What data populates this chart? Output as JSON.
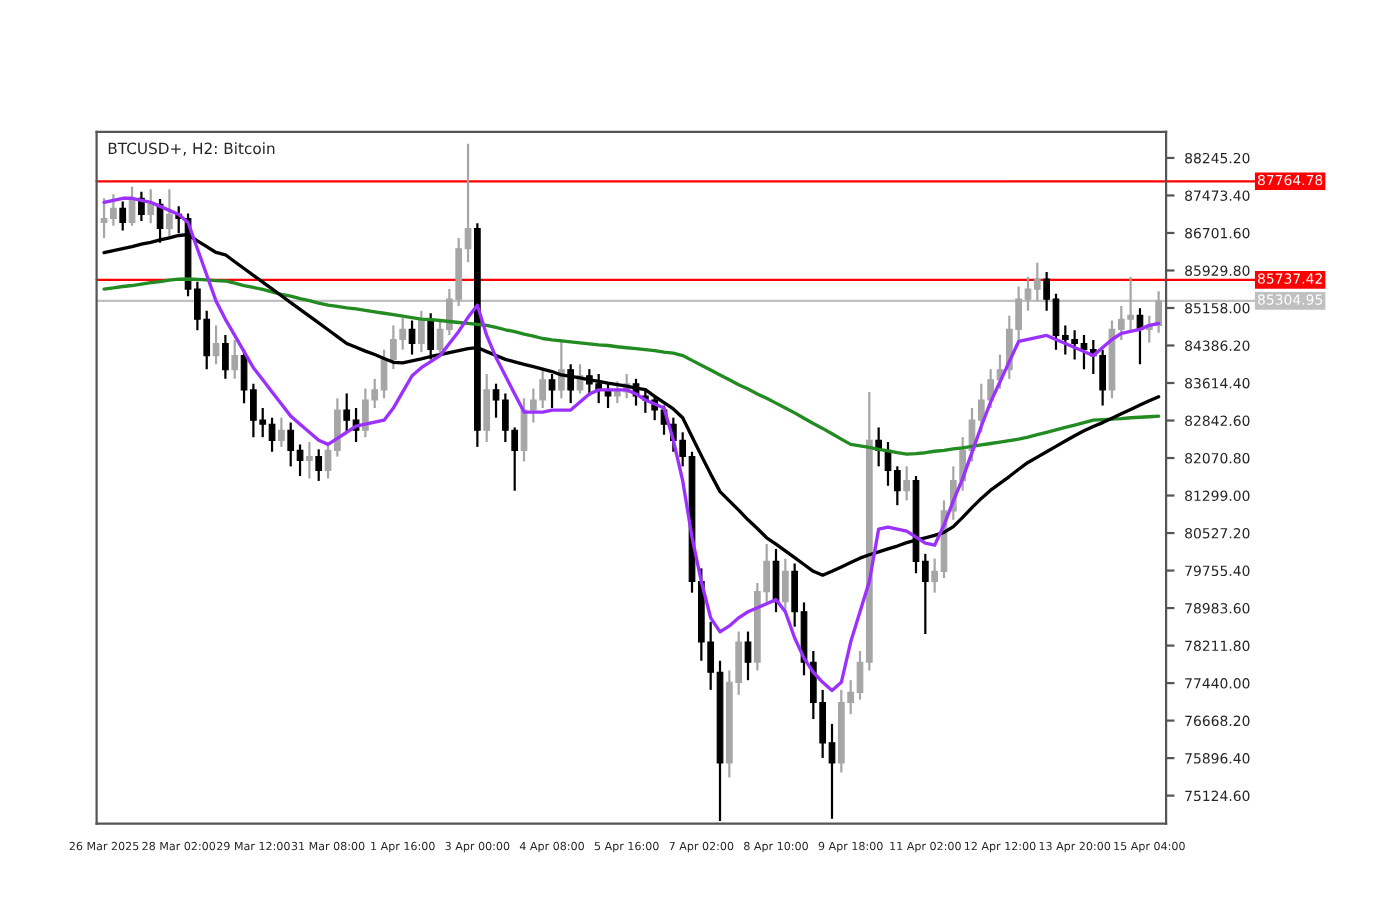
{
  "chart_data": {
    "type": "candlestick",
    "title": "BTCUSD+, H2: Bitcoin",
    "categories": [
      "26 Mar 2025",
      null,
      null,
      null,
      null,
      null,
      null,
      null,
      "28 Mar 02:00",
      null,
      null,
      null,
      null,
      null,
      null,
      null,
      "29 Mar 12:00",
      null,
      null,
      null,
      null,
      null,
      null,
      null,
      "31 Mar 08:00",
      null,
      null,
      null,
      null,
      null,
      null,
      null,
      "1 Apr 16:00",
      null,
      null,
      null,
      null,
      null,
      null,
      null,
      "3 Apr 00:00",
      null,
      null,
      null,
      null,
      null,
      null,
      null,
      "4 Apr 08:00",
      null,
      null,
      null,
      null,
      null,
      null,
      null,
      "5 Apr 16:00",
      null,
      null,
      null,
      null,
      null,
      null,
      null,
      "7 Apr 02:00",
      null,
      null,
      null,
      null,
      null,
      null,
      null,
      "8 Apr 10:00",
      null,
      null,
      null,
      null,
      null,
      null,
      null,
      "9 Apr 18:00",
      null,
      null,
      null,
      null,
      null,
      null,
      null,
      "11 Apr 02:00",
      null,
      null,
      null,
      null,
      null,
      null,
      null,
      "12 Apr 12:00",
      null,
      null,
      null,
      null,
      null,
      null,
      null,
      "13 Apr 20:00",
      null,
      null,
      null,
      null,
      null,
      null,
      null,
      "15 Apr 04:00",
      null
    ],
    "ylim": [
      74550,
      88780
    ],
    "yticks": [
      {
        "value": 88245.2,
        "label": "88245.20"
      },
      {
        "value": 87473.4,
        "label": "87473.40"
      },
      {
        "value": 86701.6,
        "label": "86701.60"
      },
      {
        "value": 85929.8,
        "label": "85929.80"
      },
      {
        "value": 85158.0,
        "label": "85158.00"
      },
      {
        "value": 84386.2,
        "label": "84386.20"
      },
      {
        "value": 83614.4,
        "label": "83614.40"
      },
      {
        "value": 82842.6,
        "label": "82842.60"
      },
      {
        "value": 82070.8,
        "label": "82070.80"
      },
      {
        "value": 81299.0,
        "label": "81299.00"
      },
      {
        "value": 80527.2,
        "label": "80527.20"
      },
      {
        "value": 79755.4,
        "label": "79755.40"
      },
      {
        "value": 78983.6,
        "label": "78983.60"
      },
      {
        "value": 78211.8,
        "label": "78211.80"
      },
      {
        "value": 77440.0,
        "label": "77440.00"
      },
      {
        "value": 76668.2,
        "label": "76668.20"
      },
      {
        "value": 75896.4,
        "label": "75896.40"
      },
      {
        "value": 75124.6,
        "label": "75124.60"
      }
    ],
    "ref_lines": [
      {
        "axis": "y",
        "value": 87764.78,
        "label": "87764.78",
        "color": "#ff0000"
      },
      {
        "axis": "y",
        "value": 85737.42,
        "label": "85737.42",
        "color": "#ff0000"
      },
      {
        "axis": "y",
        "value": 85304.95,
        "label": "85304.95",
        "color": "#c0c0c0"
      }
    ],
    "series": [
      {
        "ohlc": [
          [
            86917,
            87415,
            86600,
            87000
          ],
          [
            87000,
            87500,
            86850,
            87207
          ],
          [
            87207,
            87350,
            86750,
            86917
          ],
          [
            86917,
            87650,
            86850,
            87415
          ],
          [
            87415,
            87550,
            86950,
            87083
          ],
          [
            87083,
            87600,
            86900,
            87290
          ],
          [
            87290,
            87400,
            86500,
            86793
          ],
          [
            86793,
            87600,
            86600,
            87083
          ],
          [
            87083,
            87250,
            86700,
            87000
          ],
          [
            87000,
            87100,
            85400,
            85547
          ],
          [
            85547,
            85700,
            84700,
            84925
          ],
          [
            84925,
            85100,
            83900,
            84178
          ],
          [
            84178,
            84800,
            84000,
            84427
          ],
          [
            84427,
            84600,
            83700,
            83888
          ],
          [
            83888,
            84500,
            83700,
            84178
          ],
          [
            84178,
            84300,
            83200,
            83473
          ],
          [
            83473,
            83600,
            82500,
            82850
          ],
          [
            82850,
            83100,
            82500,
            82767
          ],
          [
            82767,
            82900,
            82200,
            82435
          ],
          [
            82435,
            82900,
            82300,
            82643
          ],
          [
            82643,
            82800,
            81900,
            82228
          ],
          [
            82228,
            82350,
            81700,
            82020
          ],
          [
            82020,
            82400,
            81650,
            82103
          ],
          [
            82103,
            82250,
            81600,
            81813
          ],
          [
            81813,
            82400,
            81650,
            82228
          ],
          [
            82228,
            83300,
            82100,
            83058
          ],
          [
            83058,
            83400,
            82600,
            82850
          ],
          [
            82850,
            83100,
            82400,
            82643
          ],
          [
            82643,
            83500,
            82500,
            83265
          ],
          [
            83265,
            83700,
            83100,
            83473
          ],
          [
            83473,
            84300,
            83300,
            84095
          ],
          [
            84095,
            84800,
            83900,
            84510
          ],
          [
            84510,
            84950,
            84300,
            84718
          ],
          [
            84718,
            84900,
            84200,
            84427
          ],
          [
            84427,
            85100,
            84250,
            84925
          ],
          [
            84925,
            85050,
            84100,
            84303
          ],
          [
            84303,
            84900,
            84150,
            84718
          ],
          [
            84718,
            85550,
            84600,
            85340
          ],
          [
            85340,
            86600,
            85200,
            86378
          ],
          [
            86378,
            88536,
            86100,
            86793
          ],
          [
            86793,
            86900,
            82300,
            82643
          ],
          [
            82643,
            83800,
            82400,
            83473
          ],
          [
            83473,
            83600,
            82900,
            83265
          ],
          [
            83265,
            83400,
            82400,
            82643
          ],
          [
            82643,
            82700,
            81398,
            82228
          ],
          [
            82228,
            83300,
            82000,
            83058
          ],
          [
            83058,
            83500,
            82800,
            83265
          ],
          [
            83265,
            83900,
            83100,
            83680
          ],
          [
            83680,
            83800,
            83100,
            83473
          ],
          [
            83473,
            84510,
            83300,
            83888
          ],
          [
            83888,
            84000,
            83200,
            83473
          ],
          [
            83473,
            84000,
            83400,
            83763
          ],
          [
            83763,
            83900,
            83350,
            83597
          ],
          [
            83597,
            83800,
            83200,
            83473
          ],
          [
            83473,
            83600,
            83100,
            83348
          ],
          [
            83348,
            83650,
            83200,
            83431
          ],
          [
            83431,
            83800,
            83300,
            83597
          ],
          [
            83597,
            83700,
            83150,
            83348
          ],
          [
            83348,
            83500,
            83000,
            83265
          ],
          [
            83265,
            83350,
            82850,
            83058
          ],
          [
            83058,
            83150,
            82550,
            82767
          ],
          [
            82767,
            82900,
            82200,
            82435
          ],
          [
            82435,
            82600,
            81900,
            82103
          ],
          [
            82103,
            82200,
            79300,
            79530
          ],
          [
            79530,
            79800,
            77900,
            78285
          ],
          [
            78285,
            78700,
            77300,
            77663
          ],
          [
            77663,
            77900,
            74600,
            75795
          ],
          [
            75795,
            77700,
            75500,
            77455
          ],
          [
            77455,
            78500,
            77200,
            78285
          ],
          [
            78285,
            78500,
            77500,
            77870
          ],
          [
            77870,
            79500,
            77700,
            79323
          ],
          [
            79323,
            80300,
            79100,
            79945
          ],
          [
            79945,
            80200,
            78900,
            79115
          ],
          [
            79115,
            80000,
            78900,
            79738
          ],
          [
            79738,
            79900,
            78600,
            78908
          ],
          [
            78908,
            79100,
            77600,
            77870
          ],
          [
            77870,
            78100,
            76700,
            77040
          ],
          [
            77040,
            77300,
            75900,
            76210
          ],
          [
            76210,
            76600,
            74650,
            75795
          ],
          [
            75795,
            77300,
            75600,
            77040
          ],
          [
            77040,
            77500,
            76800,
            77248
          ],
          [
            77248,
            78100,
            77100,
            77870
          ],
          [
            77870,
            83431,
            77700,
            82435
          ],
          [
            82435,
            82700,
            81900,
            82228
          ],
          [
            82228,
            82400,
            81500,
            81813
          ],
          [
            81813,
            81900,
            81100,
            81398
          ],
          [
            81398,
            81900,
            81200,
            81605
          ],
          [
            81605,
            81700,
            79700,
            79945
          ],
          [
            79945,
            80100,
            78450,
            79530
          ],
          [
            79530,
            80000,
            79300,
            79738
          ],
          [
            79738,
            81200,
            79600,
            80983
          ],
          [
            80983,
            81900,
            80800,
            81605
          ],
          [
            81605,
            82500,
            81400,
            82228
          ],
          [
            82228,
            83100,
            82000,
            82850
          ],
          [
            82850,
            83600,
            82600,
            83265
          ],
          [
            83265,
            83900,
            83100,
            83680
          ],
          [
            83680,
            84200,
            83500,
            83888
          ],
          [
            83888,
            85000,
            83700,
            84718
          ],
          [
            84718,
            85600,
            84500,
            85340
          ],
          [
            85340,
            85800,
            85100,
            85547
          ],
          [
            85547,
            86087,
            85300,
            85755
          ],
          [
            85755,
            85900,
            85100,
            85340
          ],
          [
            85340,
            85450,
            84300,
            84593
          ],
          [
            84593,
            84800,
            84200,
            84510
          ],
          [
            84510,
            84700,
            84100,
            84427
          ],
          [
            84427,
            84600,
            83900,
            84303
          ],
          [
            84303,
            84500,
            83800,
            84178
          ],
          [
            84178,
            84300,
            83150,
            83473
          ],
          [
            83473,
            84900,
            83300,
            84718
          ],
          [
            84718,
            85200,
            84500,
            84925
          ],
          [
            84925,
            85800,
            84700,
            85008
          ],
          [
            85008,
            85150,
            84000,
            84718
          ],
          [
            84718,
            85000,
            84450,
            84800
          ],
          [
            84800,
            85500,
            84650,
            85299
          ]
        ],
        "colors": [
          "#a6a6a6",
          "#a6a6a6",
          "#000000",
          "#a6a6a6",
          "#000000",
          "#a6a6a6",
          "#000000",
          "#a6a6a6",
          "#000000",
          "#000000",
          "#000000",
          "#000000",
          "#a6a6a6",
          "#000000",
          "#a6a6a6",
          "#000000",
          "#000000",
          "#000000",
          "#000000",
          "#a6a6a6",
          "#000000",
          "#000000",
          "#a6a6a6",
          "#000000",
          "#a6a6a6",
          "#a6a6a6",
          "#000000",
          "#000000",
          "#a6a6a6",
          "#a6a6a6",
          "#a6a6a6",
          "#a6a6a6",
          "#a6a6a6",
          "#000000",
          "#a6a6a6",
          "#000000",
          "#a6a6a6",
          "#a6a6a6",
          "#a6a6a6",
          "#a6a6a6",
          "#000000",
          "#a6a6a6",
          "#000000",
          "#000000",
          "#000000",
          "#a6a6a6",
          "#a6a6a6",
          "#a6a6a6",
          "#000000",
          "#a6a6a6",
          "#000000",
          "#a6a6a6",
          "#000000",
          "#000000",
          "#000000",
          "#a6a6a6",
          "#a6a6a6",
          "#000000",
          "#000000",
          "#000000",
          "#000000",
          "#000000",
          "#000000",
          "#000000",
          "#000000",
          "#000000",
          "#000000",
          "#a6a6a6",
          "#a6a6a6",
          "#000000",
          "#a6a6a6",
          "#a6a6a6",
          "#000000",
          "#a6a6a6",
          "#000000",
          "#000000",
          "#000000",
          "#000000",
          "#000000",
          "#a6a6a6",
          "#a6a6a6",
          "#a6a6a6",
          "#a6a6a6",
          "#000000",
          "#000000",
          "#000000",
          "#a6a6a6",
          "#000000",
          "#000000",
          "#a6a6a6",
          "#a6a6a6",
          "#a6a6a6",
          "#a6a6a6",
          "#a6a6a6",
          "#a6a6a6",
          "#a6a6a6",
          "#a6a6a6",
          "#a6a6a6",
          "#a6a6a6",
          "#a6a6a6",
          "#a6a6a6",
          "#000000",
          "#000000",
          "#000000",
          "#000000",
          "#000000",
          "#000000",
          "#000000",
          "#a6a6a6",
          "#a6a6a6",
          "#a6a6a6",
          "#000000",
          "#a6a6a6",
          "#a6a6a6"
        ]
      },
      {
        "type": "line",
        "color": "#228b22",
        "values": [
          85547,
          85570,
          85600,
          85620,
          85650,
          85680,
          85700,
          85730,
          85750,
          85755,
          85745,
          85735,
          85720,
          85714,
          85670,
          85620,
          85580,
          85540,
          85490,
          85440,
          85400,
          85350,
          85310,
          85260,
          85216,
          85190,
          85160,
          85140,
          85110,
          85080,
          85050,
          85020,
          84990,
          84960,
          84930,
          84920,
          84900,
          84880,
          84860,
          84840,
          84820,
          84800,
          84760,
          84710,
          84670,
          84620,
          84580,
          84530,
          84500,
          84480,
          84460,
          84440,
          84420,
          84400,
          84386,
          84360,
          84340,
          84320,
          84300,
          84280,
          84250,
          84230,
          84180,
          84080,
          83980,
          83880,
          83780,
          83680,
          83580,
          83490,
          83390,
          83300,
          83200,
          83100,
          83000,
          82890,
          82780,
          82680,
          82570,
          82460,
          82352,
          82320,
          82290,
          82250,
          82220,
          82180,
          82150,
          82160,
          82180,
          82210,
          82230,
          82260,
          82280,
          82310,
          82340,
          82370,
          82400,
          82430,
          82460,
          82500,
          82550,
          82600,
          82650,
          82700,
          82750,
          82800,
          82850,
          82860,
          82870,
          82880,
          82900,
          82910,
          82920,
          82933
        ]
      },
      {
        "type": "line",
        "color": "#000000",
        "values": [
          86295,
          86340,
          86380,
          86420,
          86470,
          86510,
          86560,
          86600,
          86650,
          86668,
          86540,
          86420,
          86300,
          86253,
          86110,
          85970,
          85830,
          85690,
          85550,
          85410,
          85270,
          85130,
          84990,
          84850,
          84710,
          84570,
          84427,
          84350,
          84270,
          84200,
          84120,
          84040,
          84030,
          84070,
          84110,
          84160,
          84200,
          84240,
          84280,
          84320,
          84344,
          84260,
          84180,
          84100,
          84050,
          84000,
          83950,
          83900,
          83850,
          83780,
          83750,
          83720,
          83680,
          83650,
          83610,
          83580,
          83550,
          83510,
          83480,
          83340,
          83210,
          83080,
          82900,
          82510,
          82120,
          81740,
          81380,
          81190,
          81000,
          80800,
          80620,
          80430,
          80300,
          80160,
          80020,
          79880,
          79740,
          79660,
          79740,
          79830,
          79920,
          80010,
          80080,
          80140,
          80200,
          80260,
          80330,
          80380,
          80430,
          80480,
          80540,
          80660,
          80850,
          81050,
          81240,
          81410,
          81550,
          81690,
          81840,
          81980,
          82090,
          82200,
          82310,
          82420,
          82530,
          82630,
          82720,
          82800,
          82890,
          82980,
          83070,
          83160,
          83250,
          83330
        ]
      },
      {
        "type": "line",
        "color": "#9b30ff",
        "values": [
          87332,
          87374,
          87415,
          87415,
          87374,
          87332,
          87249,
          87166,
          87083,
          86917,
          86378,
          85838,
          85299,
          84925,
          84593,
          84261,
          83929,
          83680,
          83431,
          83182,
          82933,
          82767,
          82601,
          82435,
          82352,
          82477,
          82601,
          82726,
          82767,
          82809,
          82850,
          83099,
          83431,
          83763,
          83929,
          84054,
          84178,
          84427,
          84676,
          84966,
          85216,
          84593,
          84137,
          83763,
          83390,
          83016,
          83016,
          83016,
          83058,
          83058,
          83058,
          83224,
          83390,
          83473,
          83473,
          83473,
          83473,
          83390,
          83265,
          83182,
          83099,
          82435,
          81605,
          80443,
          79530,
          78783,
          78493,
          78617,
          78783,
          78908,
          78991,
          79074,
          79157,
          78908,
          78368,
          77953,
          77663,
          77455,
          77289,
          77455,
          78285,
          78908,
          79530,
          80609,
          80651,
          80609,
          80568,
          80443,
          80319,
          80277,
          80692,
          81190,
          81647,
          82186,
          82726,
          83224,
          83639,
          84054,
          84469,
          84510,
          84552,
          84593,
          84510,
          84427,
          84344,
          84261,
          84178,
          84344,
          84510,
          84635,
          84676,
          84718,
          84801,
          84842
        ]
      }
    ]
  }
}
